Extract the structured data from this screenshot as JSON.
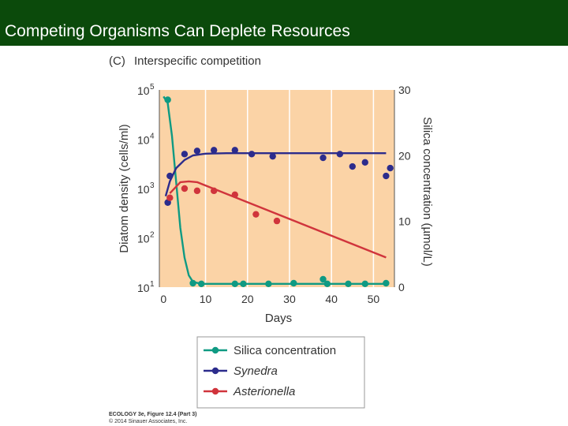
{
  "slide": {
    "title": "Competing Organisms Can Deplete Resources"
  },
  "figure": {
    "panel_label": "(C)",
    "panel_title": "Interspecific competition",
    "credit_line1": "ECOLOGY 3e, Figure 12.4 (Part 3)",
    "credit_line2": "© 2014 Sinauer Associates, Inc."
  },
  "colors": {
    "title_bar": "#0b4a0b",
    "plot_bg": "#fbd3a6",
    "grid": "#ffffff",
    "silica": "#0f9a83",
    "synedra": "#2c2c8c",
    "asterionella": "#d0343c"
  },
  "chart_data": {
    "type": "line",
    "xlabel": "Days",
    "ylabel": "Diatom density (cells/ml)",
    "y2label": "Silica concentration (µmol/L)",
    "xlim": [
      -1,
      55
    ],
    "ylim_log": [
      10,
      100000
    ],
    "y2lim": [
      0,
      30
    ],
    "xticks": [
      "0",
      "10",
      "20",
      "30",
      "40",
      "50"
    ],
    "xtick_values": [
      0,
      10,
      20,
      30,
      40,
      50
    ],
    "yticks": [
      {
        "base": "10",
        "exp": "1",
        "value": 10
      },
      {
        "base": "10",
        "exp": "2",
        "value": 100
      },
      {
        "base": "10",
        "exp": "3",
        "value": 1000
      },
      {
        "base": "10",
        "exp": "4",
        "value": 10000
      },
      {
        "base": "10",
        "exp": "5",
        "value": 100000
      }
    ],
    "y2ticks": [
      "0",
      "10",
      "20",
      "30"
    ],
    "y2tick_values": [
      0,
      10,
      20,
      30
    ],
    "grid": "vertical",
    "legend_position": "bottom",
    "series": [
      {
        "name": "Silica concentration",
        "axis": "right",
        "color_key": "silica",
        "points": [
          [
            1,
            28.5
          ],
          [
            7,
            0.6
          ],
          [
            9,
            0.5
          ],
          [
            17,
            0.5
          ],
          [
            19,
            0.5
          ],
          [
            25,
            0.5
          ],
          [
            31,
            0.6
          ],
          [
            38,
            1.2
          ],
          [
            39,
            0.5
          ],
          [
            44,
            0.5
          ],
          [
            48,
            0.5
          ],
          [
            53,
            0.6
          ]
        ],
        "curve": [
          [
            0,
            29
          ],
          [
            1,
            28
          ],
          [
            2,
            23
          ],
          [
            3,
            16
          ],
          [
            4,
            9
          ],
          [
            5,
            4.5
          ],
          [
            6,
            1.8
          ],
          [
            7,
            0.8
          ],
          [
            9,
            0.5
          ],
          [
            20,
            0.5
          ],
          [
            40,
            0.5
          ],
          [
            53,
            0.5
          ]
        ]
      },
      {
        "name": "Synedra",
        "axis": "left",
        "color_key": "synedra",
        "italic": true,
        "points": [
          [
            1,
            520
          ],
          [
            1.5,
            1800
          ],
          [
            5,
            5000
          ],
          [
            8,
            5800
          ],
          [
            12,
            6000
          ],
          [
            17,
            6000
          ],
          [
            21,
            5000
          ],
          [
            26,
            4500
          ],
          [
            38,
            4200
          ],
          [
            42,
            5000
          ],
          [
            45,
            2800
          ],
          [
            48,
            3400
          ],
          [
            53,
            1800
          ],
          [
            54,
            2600
          ]
        ],
        "curve": [
          [
            0.5,
            700
          ],
          [
            1.5,
            1400
          ],
          [
            3,
            2600
          ],
          [
            5,
            3800
          ],
          [
            7,
            4700
          ],
          [
            10,
            5100
          ],
          [
            15,
            5200
          ],
          [
            53,
            5200
          ]
        ]
      },
      {
        "name": "Asterionella",
        "axis": "left",
        "color_key": "asterionella",
        "italic": true,
        "points": [
          [
            1.5,
            650
          ],
          [
            5,
            1000
          ],
          [
            8,
            900
          ],
          [
            12,
            900
          ],
          [
            17,
            750
          ],
          [
            22,
            300
          ],
          [
            27,
            220
          ]
        ],
        "curve": [
          [
            1.5,
            800
          ],
          [
            4,
            1350
          ],
          [
            6,
            1400
          ],
          [
            8,
            1350
          ],
          [
            53,
            40
          ]
        ]
      }
    ]
  }
}
